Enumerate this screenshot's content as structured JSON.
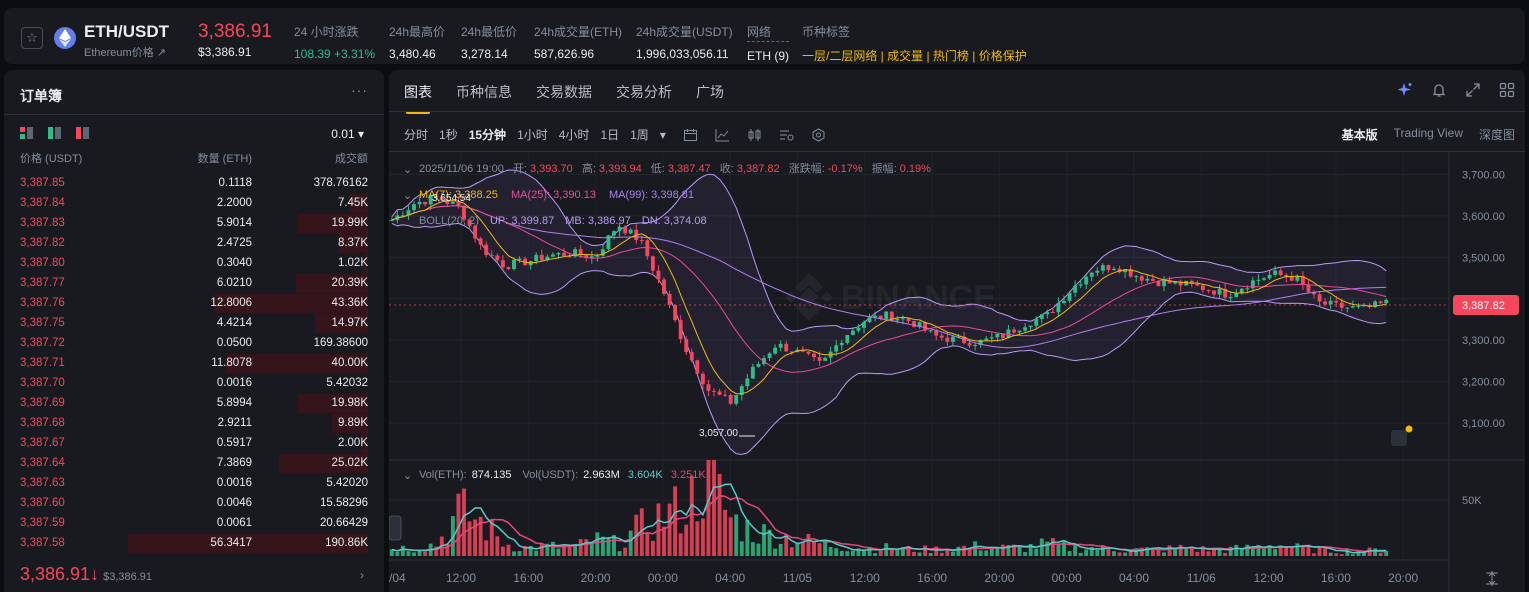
{
  "header": {
    "symbol": "ETH/USDT",
    "subtitle": "Ethereum价格 ↗",
    "last_price": "3,386.91",
    "last_price_usd": "$3,386.91",
    "stats": [
      {
        "label": "24 小时涨跌",
        "value": "108.39 +3.31%",
        "color": "green"
      },
      {
        "label": "24h最高价",
        "value": "3,480.46"
      },
      {
        "label": "24h最低价",
        "value": "3,278.14"
      },
      {
        "label": "24h成交量(ETH)",
        "value": "587,626.96"
      },
      {
        "label": "24h成交量(USDT)",
        "value": "1,996,033,056.11"
      },
      {
        "label": "网络",
        "value": "ETH (9)"
      },
      {
        "label": "币种标签",
        "value": "一层/二层网络 | 成交量 | 热门榜 | 价格保护",
        "color": "yellow"
      }
    ],
    "favorite_icon": "star-icon"
  },
  "orderbook": {
    "title": "订单簿",
    "more": "···",
    "tick_size": "0.01 ▾",
    "columns": {
      "price": "价格 (USDT)",
      "qty": "数量 (ETH)",
      "total": "成交额"
    },
    "rows": [
      {
        "price": "3,387.85",
        "qty": "0.1118",
        "total": "378.76162",
        "depth": 0.0
      },
      {
        "price": "3,387.84",
        "qty": "2.2000",
        "total": "7.45K",
        "depth": 0.08
      },
      {
        "price": "3,387.83",
        "qty": "5.9014",
        "total": "19.99K",
        "depth": 0.29
      },
      {
        "price": "3,387.82",
        "qty": "2.4725",
        "total": "8.37K",
        "depth": 0.12
      },
      {
        "price": "3,387.80",
        "qty": "0.3040",
        "total": "1.02K",
        "depth": 0.02
      },
      {
        "price": "3,387.77",
        "qty": "6.0210",
        "total": "20.39K",
        "depth": 0.3
      },
      {
        "price": "3,387.76",
        "qty": "12.8006",
        "total": "43.36K",
        "depth": 0.64
      },
      {
        "price": "3,387.75",
        "qty": "4.4214",
        "total": "14.97K",
        "depth": 0.22
      },
      {
        "price": "3,387.72",
        "qty": "0.0500",
        "total": "169.38600",
        "depth": 0.0
      },
      {
        "price": "3,387.71",
        "qty": "11.8078",
        "total": "40.00K",
        "depth": 0.59
      },
      {
        "price": "3,387.70",
        "qty": "0.0016",
        "total": "5.42032",
        "depth": 0.0
      },
      {
        "price": "3,387.69",
        "qty": "5.8994",
        "total": "19.98K",
        "depth": 0.29
      },
      {
        "price": "3,387.68",
        "qty": "2.9211",
        "total": "9.89K",
        "depth": 0.15
      },
      {
        "price": "3,387.67",
        "qty": "0.5917",
        "total": "2.00K",
        "depth": 0.03
      },
      {
        "price": "3,387.64",
        "qty": "7.3869",
        "total": "25.02K",
        "depth": 0.37
      },
      {
        "price": "3,387.63",
        "qty": "0.0016",
        "total": "5.42020",
        "depth": 0.0
      },
      {
        "price": "3,387.60",
        "qty": "0.0046",
        "total": "15.58296",
        "depth": 0.0
      },
      {
        "price": "3,387.59",
        "qty": "0.0061",
        "total": "20.66429",
        "depth": 0.0
      },
      {
        "price": "3,387.58",
        "qty": "56.3417",
        "total": "190.86K",
        "depth": 1.0
      }
    ],
    "mid_price": "3,386.91",
    "mid_arrow": "↓",
    "mid_usd": "$3,386.91",
    "mid_link": "›"
  },
  "chart_panel": {
    "tabs": [
      "图表",
      "币种信息",
      "交易数据",
      "交易分析",
      "广场"
    ],
    "active_tab": 0,
    "intervals": [
      "分时",
      "1秒",
      "15分钟",
      "1小时",
      "4小时",
      "1日",
      "1周",
      "▾"
    ],
    "active_interval": 2,
    "views": [
      "基本版",
      "Trading View",
      "深度图"
    ],
    "active_view": 0,
    "tab_icons": [
      "ai-sparkle-icon",
      "bell-icon",
      "expand-icon",
      "grid-layout-icon"
    ]
  },
  "chart_data": {
    "type": "candlestick",
    "ohlc_label": {
      "date": "2025/11/06 19:00",
      "open_label": "开:",
      "open": "3,393.70",
      "high_label": "高:",
      "high": "3,393.94",
      "low_label": "低:",
      "low": "3,387.47",
      "close_label": "收:",
      "close": "3,387.82",
      "change_label": "涨跌幅:",
      "change": "-0.17%",
      "amp_label": "振幅:",
      "amp": "0.19%"
    },
    "ma_label": {
      "ma7": "MA(7): 3,388.25",
      "ma25": "MA(25): 3,390.13",
      "ma99": "MA(99): 3,398.81"
    },
    "boll_label": {
      "boll": "BOLL(20, 2)",
      "up": "UP: 3,399.87",
      "mb": "MB: 3,386.97",
      "dn": "DN: 3,374.08"
    },
    "y_ticks": [
      "3,700.00",
      "3,600.00",
      "3,500.00",
      "3,400.00",
      "3,300.00",
      "3,200.00",
      "3,100.00"
    ],
    "y_range": [
      3030,
      3730
    ],
    "current_price_tag": "3,387.82",
    "high_annotation": "3,654.54",
    "low_annotation": "3,057.00",
    "x_ticks": [
      "/04",
      "12:00",
      "16:00",
      "20:00",
      "00:00",
      "04:00",
      "11/05",
      "12:00",
      "16:00",
      "20:00",
      "00:00",
      "04:00",
      "11/06",
      "12:00",
      "16:00",
      "20:00"
    ],
    "close_anchors": [
      3590,
      3630,
      3645,
      3620,
      3520,
      3480,
      3490,
      3505,
      3510,
      3500,
      3580,
      3540,
      3420,
      3280,
      3180,
      3150,
      3230,
      3290,
      3270,
      3240,
      3310,
      3350,
      3360,
      3345,
      3310,
      3300,
      3295,
      3310,
      3340,
      3360,
      3420,
      3470,
      3480,
      3455,
      3440,
      3435,
      3425,
      3410,
      3440,
      3460,
      3450,
      3390,
      3380,
      3375,
      3390
    ],
    "volume_label": {
      "vol_eth": "Vol(ETH):",
      "vol_eth_val": "874.135",
      "vol_usdt": "Vol(USDT):",
      "vol_usdt_val": "2.963M",
      "ma1": "3.604K",
      "ma2": "3.251K"
    },
    "volume_y_tick": "50K",
    "volume_peaks": [
      0.1,
      0.1,
      0.15,
      0.55,
      0.4,
      0.15,
      0.1,
      0.12,
      0.1,
      0.2,
      0.15,
      0.35,
      0.5,
      0.6,
      1.0,
      0.45,
      0.3,
      0.25,
      0.2,
      0.15,
      0.12,
      0.1,
      0.1,
      0.08,
      0.08,
      0.1,
      0.12,
      0.1,
      0.1,
      0.15,
      0.1,
      0.1,
      0.08,
      0.08,
      0.08,
      0.1,
      0.08,
      0.08,
      0.1,
      0.15,
      0.1,
      0.08,
      0.06,
      0.06,
      0.08
    ],
    "colors": {
      "up": "#2ebd85",
      "down": "#f6465d",
      "ma7": "#f0b90b",
      "ma25": "#e84b97",
      "ma99": "#b07ef0",
      "boll": "#b89af5",
      "vol_ma1": "#5bc7c8",
      "vol_ma2": "#e8457b"
    }
  }
}
